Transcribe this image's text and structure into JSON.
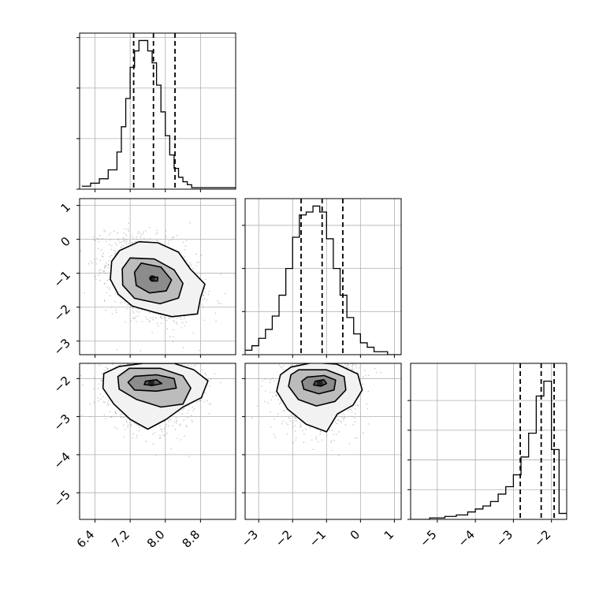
{
  "chart_data": {
    "type": "corner",
    "params": [
      "p0",
      "p1",
      "p2"
    ],
    "grid": true,
    "histograms": [
      {
        "param": 0,
        "bin_edges": [
          6.1,
          6.3,
          6.5,
          6.7,
          6.9,
          7.0,
          7.1,
          7.2,
          7.3,
          7.4,
          7.5,
          7.6,
          7.7,
          7.8,
          7.9,
          8.0,
          8.1,
          8.2,
          8.3,
          8.4,
          8.5,
          8.6,
          8.7,
          8.8,
          9.0,
          9.2,
          9.4,
          9.6
        ],
        "counts": [
          0.02,
          0.04,
          0.07,
          0.13,
          0.25,
          0.42,
          0.61,
          0.82,
          0.93,
          1.0,
          1.0,
          0.93,
          0.85,
          0.7,
          0.52,
          0.36,
          0.23,
          0.14,
          0.08,
          0.05,
          0.03,
          0.01,
          0.01,
          0.01,
          0.01,
          0.01,
          0.01
        ],
        "quantiles": [
          7.28,
          7.73,
          8.22
        ],
        "xlim": [
          6.05,
          9.6
        ],
        "yticks": [
          0,
          0.34,
          0.68,
          1.02
        ]
      },
      {
        "param": 1,
        "bin_edges": [
          -3.4,
          -3.2,
          -3.0,
          -2.8,
          -2.6,
          -2.4,
          -2.2,
          -2.0,
          -1.8,
          -1.6,
          -1.4,
          -1.2,
          -1.0,
          -0.8,
          -0.6,
          -0.4,
          -0.2,
          0.0,
          0.2,
          0.4,
          0.6,
          0.8,
          1.0,
          1.2
        ],
        "counts": [
          0.03,
          0.06,
          0.11,
          0.17,
          0.26,
          0.4,
          0.58,
          0.79,
          0.94,
          0.96,
          1.0,
          0.96,
          0.78,
          0.58,
          0.4,
          0.25,
          0.14,
          0.08,
          0.05,
          0.02,
          0.02,
          0.0,
          0.0
        ],
        "quantiles": [
          -1.75,
          -1.13,
          -0.52
        ],
        "xlim": [
          -3.4,
          1.2
        ],
        "yticks": [
          0,
          0.29,
          0.58,
          0.87
        ]
      },
      {
        "param": 2,
        "bin_edges": [
          -5.7,
          -5.2,
          -4.8,
          -4.5,
          -4.2,
          -4.0,
          -3.8,
          -3.6,
          -3.4,
          -3.2,
          -3.0,
          -2.8,
          -2.6,
          -2.4,
          -2.2,
          -2.0,
          -1.8,
          -1.6
        ],
        "counts": [
          0.0,
          0.01,
          0.02,
          0.03,
          0.05,
          0.07,
          0.09,
          0.12,
          0.17,
          0.22,
          0.3,
          0.42,
          0.58,
          0.83,
          0.93,
          0.47,
          0.04
        ],
        "quantiles": [
          -2.82,
          -2.27,
          -1.93
        ],
        "xlim": [
          -5.7,
          -1.6
        ],
        "yticks": [
          0,
          0.2,
          0.4,
          0.6,
          0.8
        ]
      }
    ],
    "panels_2d": [
      {
        "x_param": 0,
        "y_param": 1,
        "xlim": [
          6.05,
          9.6
        ],
        "ylim": [
          -3.4,
          1.2
        ],
        "center": [
          7.7,
          -1.15
        ],
        "spread": [
          0.52,
          0.62
        ],
        "correlation": -0.35,
        "contours": [
          {
            "level": 1,
            "points": [
              [
                7.72,
                -1.1
              ],
              [
                7.83,
                -1.12
              ],
              [
                7.82,
                -1.23
              ],
              [
                7.69,
                -1.23
              ],
              [
                7.66,
                -1.14
              ]
            ]
          },
          {
            "level": 2,
            "points": [
              [
                7.45,
                -0.7
              ],
              [
                7.9,
                -0.82
              ],
              [
                8.14,
                -1.2
              ],
              [
                8.02,
                -1.52
              ],
              [
                7.64,
                -1.58
              ],
              [
                7.34,
                -1.36
              ],
              [
                7.3,
                -0.97
              ]
            ]
          },
          {
            "level": 3,
            "points": [
              [
                7.2,
                -0.55
              ],
              [
                7.75,
                -0.58
              ],
              [
                8.2,
                -0.9
              ],
              [
                8.4,
                -1.3
              ],
              [
                8.3,
                -1.73
              ],
              [
                7.88,
                -1.9
              ],
              [
                7.3,
                -1.74
              ],
              [
                7.03,
                -1.35
              ],
              [
                7.02,
                -0.87
              ]
            ]
          },
          {
            "level": 4,
            "points": [
              [
                6.96,
                -0.33
              ],
              [
                7.4,
                -0.07
              ],
              [
                7.83,
                -0.1
              ],
              [
                8.3,
                -0.38
              ],
              [
                8.57,
                -0.88
              ],
              [
                8.9,
                -1.32
              ],
              [
                8.8,
                -1.72
              ],
              [
                8.73,
                -2.2
              ],
              [
                8.15,
                -2.28
              ],
              [
                7.75,
                -2.15
              ],
              [
                7.25,
                -1.97
              ],
              [
                6.93,
                -1.62
              ],
              [
                6.75,
                -1.18
              ],
              [
                6.78,
                -0.65
              ]
            ]
          }
        ]
      },
      {
        "x_param": 0,
        "y_param": 2,
        "xlim": [
          6.05,
          9.6
        ],
        "ylim": [
          -5.7,
          -1.6
        ],
        "center": [
          7.68,
          -2.12
        ],
        "spread": [
          0.52,
          0.55
        ],
        "correlation": -0.05,
        "contours": [
          {
            "level": 1,
            "points": [
              [
                7.55,
                -2.07
              ],
              [
                7.8,
                -2.03
              ],
              [
                7.92,
                -2.13
              ],
              [
                7.72,
                -2.18
              ],
              [
                7.52,
                -2.16
              ]
            ]
          },
          {
            "level": 2,
            "points": [
              [
                7.3,
                -1.94
              ],
              [
                7.8,
                -1.9
              ],
              [
                8.2,
                -2.0
              ],
              [
                8.25,
                -2.25
              ],
              [
                7.8,
                -2.33
              ],
              [
                7.3,
                -2.3
              ],
              [
                7.15,
                -2.1
              ]
            ]
          },
          {
            "level": 3,
            "points": [
              [
                7.18,
                -1.73
              ],
              [
                7.88,
                -1.73
              ],
              [
                8.4,
                -1.93
              ],
              [
                8.58,
                -2.25
              ],
              [
                8.4,
                -2.67
              ],
              [
                7.9,
                -2.75
              ],
              [
                7.35,
                -2.55
              ],
              [
                6.95,
                -2.28
              ],
              [
                6.92,
                -1.95
              ]
            ]
          },
          {
            "level": 4,
            "points": [
              [
                6.95,
                -1.68
              ],
              [
                7.5,
                -1.6
              ],
              [
                8.2,
                -1.6
              ],
              [
                8.65,
                -1.77
              ],
              [
                8.97,
                -2.06
              ],
              [
                8.82,
                -2.5
              ],
              [
                8.4,
                -2.75
              ],
              [
                8.02,
                -3.07
              ],
              [
                7.6,
                -3.33
              ],
              [
                7.2,
                -3.07
              ],
              [
                6.83,
                -2.67
              ],
              [
                6.58,
                -2.25
              ],
              [
                6.6,
                -1.87
              ]
            ]
          }
        ]
      },
      {
        "x_param": 1,
        "y_param": 2,
        "xlim": [
          -3.4,
          1.2
        ],
        "ylim": [
          -5.7,
          -1.6
        ],
        "center": [
          -1.2,
          -2.12
        ],
        "spread": [
          0.55,
          0.55
        ],
        "correlation": 0.05,
        "contours": [
          {
            "level": 1,
            "points": [
              [
                -1.33,
                -2.07
              ],
              [
                -1.08,
                -2.03
              ],
              [
                -1.0,
                -2.13
              ],
              [
                -1.17,
                -2.2
              ],
              [
                -1.38,
                -2.17
              ]
            ]
          },
          {
            "level": 2,
            "points": [
              [
                -1.57,
                -1.96
              ],
              [
                -1.07,
                -1.92
              ],
              [
                -0.73,
                -2.04
              ],
              [
                -0.78,
                -2.3
              ],
              [
                -1.23,
                -2.4
              ],
              [
                -1.67,
                -2.28
              ],
              [
                -1.73,
                -2.07
              ]
            ]
          },
          {
            "level": 3,
            "points": [
              [
                -1.82,
                -1.77
              ],
              [
                -1.0,
                -1.77
              ],
              [
                -0.48,
                -1.95
              ],
              [
                -0.43,
                -2.3
              ],
              [
                -0.75,
                -2.6
              ],
              [
                -1.3,
                -2.72
              ],
              [
                -1.83,
                -2.55
              ],
              [
                -2.12,
                -2.2
              ],
              [
                -2.05,
                -1.9
              ]
            ]
          },
          {
            "level": 4,
            "points": [
              [
                -2.05,
                -1.7
              ],
              [
                -1.4,
                -1.58
              ],
              [
                -0.7,
                -1.62
              ],
              [
                -0.08,
                -1.88
              ],
              [
                0.05,
                -2.3
              ],
              [
                -0.22,
                -2.7
              ],
              [
                -0.68,
                -2.93
              ],
              [
                -1.0,
                -3.4
              ],
              [
                -1.6,
                -3.2
              ],
              [
                -2.15,
                -2.8
              ],
              [
                -2.47,
                -2.33
              ],
              [
                -2.36,
                -1.9
              ]
            ]
          }
        ]
      }
    ],
    "axis_ticks": {
      "p0": [
        "6.4",
        "7.2",
        "8.0",
        "8.8"
      ],
      "p1": [
        "−3",
        "−2",
        "−1",
        "0",
        "1"
      ],
      "p2": [
        "−5",
        "−4",
        "−3",
        "−2"
      ]
    },
    "tick_values": {
      "p0": [
        6.4,
        7.2,
        8.0,
        8.8
      ],
      "p1": [
        -3,
        -2,
        -1,
        0,
        1
      ],
      "p2": [
        -5,
        -4,
        -3,
        -2
      ]
    },
    "colors": {
      "hist_line": "#000000",
      "quantile_line": "#000000",
      "grid": "#b0b0b0",
      "scatter": "#9a9a9a",
      "density_dark": "#222222"
    }
  }
}
